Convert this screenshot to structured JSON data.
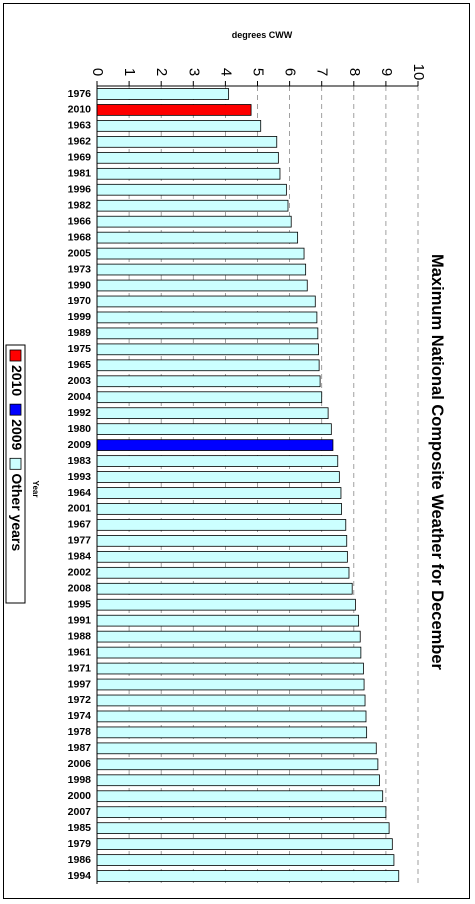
{
  "chart_data": {
    "type": "bar",
    "orientation": "horizontal",
    "title": "Maximum National Composite Weather for December",
    "xlabel": "degrees CWW",
    "ylabel": "Year",
    "xlim": [
      0,
      10
    ],
    "xticks": [
      "0",
      "1",
      "2",
      "3",
      "4",
      "5",
      "6",
      "7",
      "8",
      "9",
      "10"
    ],
    "grid": "dashed vertical",
    "legend_position": "bottom",
    "categories": [
      "1976",
      "2010",
      "1963",
      "1962",
      "1969",
      "1981",
      "1996",
      "1982",
      "1966",
      "1968",
      "2005",
      "1973",
      "1990",
      "1970",
      "1999",
      "1989",
      "1975",
      "1965",
      "2003",
      "2004",
      "1992",
      "1980",
      "2009",
      "1983",
      "1993",
      "1964",
      "2001",
      "1967",
      "1977",
      "1984",
      "2002",
      "2008",
      "1995",
      "1991",
      "1988",
      "1961",
      "1971",
      "1997",
      "1972",
      "1974",
      "1978",
      "1987",
      "2006",
      "1998",
      "2000",
      "2007",
      "1985",
      "1979",
      "1986",
      "1994"
    ],
    "values": [
      4.1,
      4.8,
      5.1,
      5.6,
      5.65,
      5.7,
      5.9,
      5.95,
      6.05,
      6.25,
      6.45,
      6.5,
      6.55,
      6.8,
      6.85,
      6.88,
      6.9,
      6.92,
      6.95,
      7.0,
      7.2,
      7.3,
      7.35,
      7.5,
      7.55,
      7.6,
      7.62,
      7.75,
      7.78,
      7.8,
      7.85,
      7.95,
      8.05,
      8.15,
      8.2,
      8.22,
      8.3,
      8.32,
      8.35,
      8.38,
      8.4,
      8.7,
      8.75,
      8.8,
      8.9,
      9.0,
      9.1,
      9.2,
      9.25,
      9.4
    ],
    "highlight": {
      "2010": "#ff0000",
      "2009": "#0000ff"
    },
    "default_color": "#ccffff",
    "legend": [
      {
        "label": "2010",
        "color": "#ff0000"
      },
      {
        "label": "2009",
        "color": "#0000ff"
      },
      {
        "label": "Other years",
        "color": "#ccffff"
      }
    ]
  }
}
